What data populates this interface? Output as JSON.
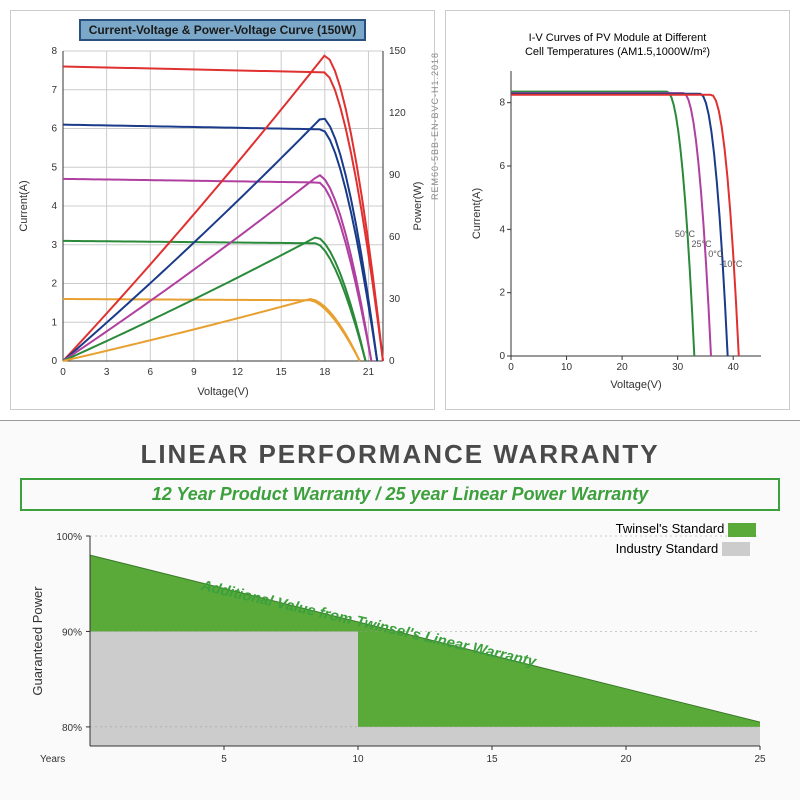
{
  "chart1": {
    "type": "line",
    "title": "Current-Voltage & Power-Voltage Curve (150W)",
    "xlabel": "Voltage(V)",
    "ylabel_left": "Current(A)",
    "ylabel_right": "Power(W)",
    "xlim": [
      0,
      22
    ],
    "ylim_left": [
      0,
      8
    ],
    "ylim_right": [
      0,
      150
    ],
    "xticks": [
      0,
      3,
      6,
      9,
      12,
      15,
      18,
      21
    ],
    "yticks_left": [
      0,
      1,
      2,
      3,
      4,
      5,
      6,
      7,
      8
    ],
    "yticks_right": [
      0,
      30,
      60,
      90,
      120,
      150
    ],
    "grid_color": "#cccccc",
    "background_color": "#ffffff",
    "title_bg": "#7ba8c8",
    "title_border": "#2a5080",
    "iv_curves": [
      {
        "color": "#e03030",
        "isc": 7.6,
        "voc": 22.0,
        "vmp": 18.0
      },
      {
        "color": "#1a3a8a",
        "isc": 6.1,
        "voc": 21.6,
        "vmp": 17.8
      },
      {
        "color": "#b040a0",
        "isc": 4.7,
        "voc": 21.2,
        "vmp": 17.6
      },
      {
        "color": "#2a8a3a",
        "isc": 3.1,
        "voc": 20.8,
        "vmp": 17.4
      },
      {
        "color": "#e8a030",
        "isc": 1.6,
        "voc": 20.4,
        "vmp": 17.0
      }
    ],
    "pv_curves": [
      {
        "color": "#e03030",
        "pmax": 148,
        "vmp": 18.0,
        "voc": 22.0
      },
      {
        "color": "#1a3a8a",
        "pmax": 118,
        "vmp": 17.8,
        "voc": 21.6
      },
      {
        "color": "#b040a0",
        "pmax": 90,
        "vmp": 17.6,
        "voc": 21.2
      },
      {
        "color": "#2a8a3a",
        "pmax": 60,
        "vmp": 17.4,
        "voc": 20.8
      },
      {
        "color": "#e8a030",
        "pmax": 30,
        "vmp": 17.0,
        "voc": 20.4
      }
    ]
  },
  "chart2": {
    "type": "line",
    "title_line1": "I-V Curves of PV Module at Different",
    "title_line2": "Cell Temperatures (AM1.5,1000W/m²)",
    "xlabel": "Voltage(V)",
    "ylabel": "Current(A)",
    "xlim": [
      0,
      45
    ],
    "ylim": [
      0,
      9
    ],
    "xticks": [
      0,
      10,
      20,
      30,
      40
    ],
    "yticks": [
      0,
      2,
      4,
      6,
      8
    ],
    "curves": [
      {
        "color": "#2a8a3a",
        "label": "50°C",
        "isc": 8.35,
        "voc": 33,
        "knee": 28
      },
      {
        "color": "#b040a0",
        "label": "25°C",
        "isc": 8.3,
        "voc": 36,
        "knee": 31
      },
      {
        "color": "#1a3a8a",
        "label": "0°C",
        "isc": 8.28,
        "voc": 39,
        "knee": 34
      },
      {
        "color": "#e03030",
        "label": "-10°C",
        "isc": 8.25,
        "voc": 41,
        "knee": 36
      }
    ]
  },
  "side_text": "REM60-5BB-EN-BVC-H1.2018",
  "warranty": {
    "title": "LINEAR PERFORMANCE WARRANTY",
    "subtitle": "12 Year Product Warranty / 25 year Linear Power Warranty",
    "xlabel": "Years",
    "ylabel": "Guaranteed Power",
    "xlim": [
      0,
      25
    ],
    "ylim": [
      78,
      100
    ],
    "xticks": [
      5,
      10,
      15,
      20,
      25
    ],
    "yticks": [
      80,
      90,
      100
    ],
    "ytick_labels": [
      "80%",
      "90%",
      "100%"
    ],
    "additional_text": "Additional Value from Twinsel's Linear Warranty",
    "legend": [
      {
        "label": "Twinsel's Standard",
        "color": "#5aaa3a"
      },
      {
        "label": "Industry Standard",
        "color": "#cccccc"
      }
    ],
    "twinsel_poly": [
      [
        0,
        98
      ],
      [
        25,
        80.5
      ],
      [
        25,
        78
      ],
      [
        0,
        78
      ]
    ],
    "industry_poly": [
      [
        0,
        90
      ],
      [
        10,
        90
      ],
      [
        10,
        80
      ],
      [
        25,
        80
      ],
      [
        25,
        78
      ],
      [
        0,
        78
      ]
    ],
    "twinsel_color": "#5aaa3a",
    "industry_color": "#cccccc"
  }
}
